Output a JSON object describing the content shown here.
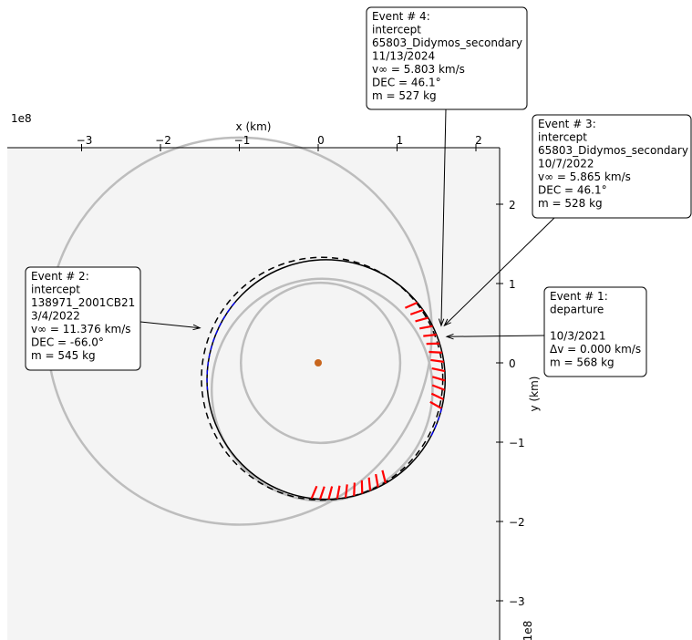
{
  "chart_data": {
    "type": "scatter",
    "title": "",
    "xlabel": "x (km)",
    "ylabel": "y (km)",
    "x_offset_label": "1e8",
    "y_offset_label": "1e8",
    "xlim": [
      -3.9,
      2.3
    ],
    "ylim": [
      -3.45,
      2.7
    ],
    "x_ticks": [
      -3,
      -2,
      -1,
      0,
      1,
      2
    ],
    "y_ticks": [
      2,
      1,
      0,
      -1,
      -2,
      -3
    ],
    "x_tick_labels": [
      "−3",
      "−2",
      "−1",
      "0",
      "1",
      "2"
    ],
    "y_tick_labels": [
      "2",
      "1",
      "0",
      "−1",
      "−2",
      "−3"
    ],
    "sun": {
      "x": 0.0,
      "y": 0.0,
      "color": "#c8661e"
    },
    "grey_orbits": [
      {
        "cx": 0.03,
        "cy": 0.0,
        "r": 1.01
      },
      {
        "cx": 0.05,
        "cy": -0.34,
        "r": 1.4
      },
      {
        "cx": -1.0,
        "cy": 0.4,
        "r": 2.44
      }
    ],
    "trajectory_circles": [
      {
        "style": "solid",
        "cx": 0.1,
        "cy": -0.21,
        "r": 1.51
      },
      {
        "style": "dashed",
        "cx": 0.05,
        "cy": -0.2,
        "r": 1.53
      }
    ],
    "thrust_arcs": [
      {
        "color": "#ff0000",
        "from": "38 deg",
        "to": "-12 deg",
        "center": [
          0.1,
          -0.21
        ],
        "radius": 1.51
      },
      {
        "color": "#ff0000",
        "from": "-65 deg",
        "to": "-95 deg",
        "center": [
          0.1,
          -0.21
        ],
        "radius": 1.51
      }
    ],
    "coast_arcs": [
      {
        "color": "#0000ff",
        "from": "-12 deg",
        "to": "-25 deg"
      },
      {
        "color": "#0000ff",
        "from": "150 deg",
        "to": "190 deg"
      }
    ],
    "events": [
      {
        "lines": [
          "Event # 4:",
          "intercept",
          "65803_Didymos_secondary",
          "11/13/2024",
          "v∞ = 5.803 km/s",
          "DEC = 46.1°",
          "m = 527 kg"
        ],
        "point": [
          1.56,
          0.47
        ]
      },
      {
        "lines": [
          "Event # 3:",
          "intercept",
          "65803_Didymos_secondary",
          "10/7/2022",
          "v∞ = 5.865 km/s",
          "DEC = 46.1°",
          "m = 528 kg"
        ],
        "point": [
          1.6,
          0.47
        ]
      },
      {
        "lines": [
          "Event # 2:",
          "intercept",
          "138971_2001CB21",
          "3/4/2022",
          "v∞ = 11.376 km/s",
          "DEC = -66.0°",
          "m = 545 kg"
        ],
        "point": [
          -1.5,
          0.44
        ]
      },
      {
        "lines": [
          "Event # 1:",
          "departure",
          "",
          "10/3/2021",
          "Δv = 0.000 km/s",
          "m = 568 kg"
        ],
        "point": [
          1.63,
          0.33
        ]
      }
    ]
  }
}
